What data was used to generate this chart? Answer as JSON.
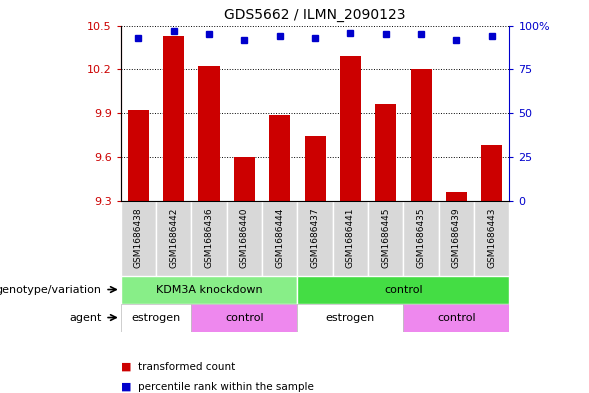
{
  "title": "GDS5662 / ILMN_2090123",
  "samples": [
    "GSM1686438",
    "GSM1686442",
    "GSM1686436",
    "GSM1686440",
    "GSM1686444",
    "GSM1686437",
    "GSM1686441",
    "GSM1686445",
    "GSM1686435",
    "GSM1686439",
    "GSM1686443"
  ],
  "transformed_count": [
    9.92,
    10.43,
    10.22,
    9.6,
    9.89,
    9.74,
    10.29,
    9.96,
    10.2,
    9.36,
    9.68
  ],
  "percentile": [
    93,
    97,
    95,
    92,
    94,
    93,
    96,
    95,
    95,
    92,
    94
  ],
  "ylim": [
    9.3,
    10.5
  ],
  "yticks": [
    9.3,
    9.6,
    9.9,
    10.2,
    10.5
  ],
  "right_yticks": [
    0,
    25,
    50,
    75,
    100
  ],
  "right_ylim": [
    0,
    100
  ],
  "bar_color": "#cc0000",
  "dot_color": "#0000cc",
  "grid_color": "#000000",
  "left_tick_color": "#cc0000",
  "right_tick_color": "#0000cc",
  "genotype_groups": [
    {
      "label": "KDM3A knockdown",
      "start": 0,
      "end": 5,
      "color": "#88ee88"
    },
    {
      "label": "control",
      "start": 5,
      "end": 11,
      "color": "#44dd44"
    }
  ],
  "agent_groups": [
    {
      "label": "estrogen",
      "start": 0,
      "end": 2,
      "color": "#ffffff"
    },
    {
      "label": "control",
      "start": 2,
      "end": 5,
      "color": "#ee88ee"
    },
    {
      "label": "estrogen",
      "start": 5,
      "end": 8,
      "color": "#ffffff"
    },
    {
      "label": "control",
      "start": 8,
      "end": 11,
      "color": "#ee88ee"
    }
  ],
  "legend_items": [
    {
      "label": "transformed count",
      "color": "#cc0000"
    },
    {
      "label": "percentile rank within the sample",
      "color": "#0000cc"
    }
  ],
  "label_genotype": "genotype/variation",
  "label_agent": "agent"
}
